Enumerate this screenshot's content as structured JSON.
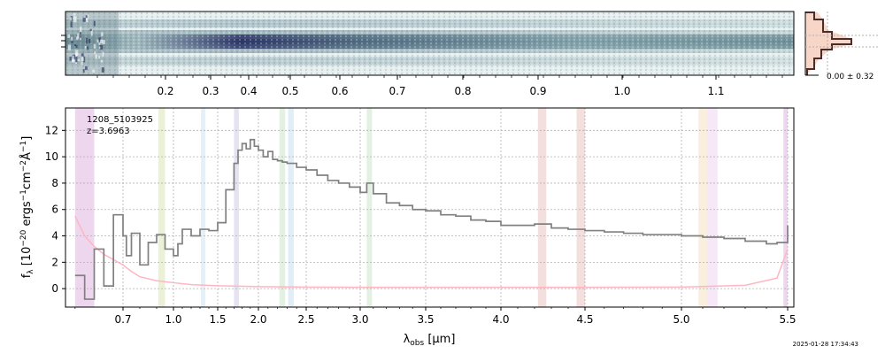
{
  "object_id": "1208_5103925",
  "redshift_label": "z=3.6963",
  "timestamp": "2025-01-28 17:34:43",
  "profile_label": "0.00 ± 0.32",
  "colors": {
    "spectrum": "#808080",
    "error": "#ffb6c1",
    "grid": "#b0b0b0",
    "profile_line": "#4a2c2a",
    "profile_fill": "#f4c4b0",
    "image_dark": "#1e2a55",
    "image_mid": "#7fa3ab",
    "image_light": "#e8f0f0"
  },
  "chart_data": [
    {
      "type": "heatmap",
      "name": "2d-spectrum",
      "top_axis_label": "",
      "top_ticks": [
        0.2,
        0.3,
        0.4,
        0.5,
        0.6,
        0.7,
        0.8,
        0.9,
        1.0,
        1.1
      ],
      "top_tick_labels": [
        "0.2",
        "0.3",
        "0.4",
        "0.5",
        "0.6",
        "0.7",
        "0.8",
        "0.9",
        "1.0",
        "1.1"
      ],
      "xlim": [
        0.58,
        5.52
      ]
    },
    {
      "type": "line",
      "name": "1d-spectrum",
      "xlabel": "λobs [μm]",
      "ylabel": "fλ [10⁻²⁰ ergs⁻¹cm⁻²Å⁻¹]",
      "xlim": [
        0.58,
        5.52
      ],
      "ylim": [
        -1.4,
        13.7
      ],
      "grid": true,
      "x_ticks": [
        0.7,
        1.0,
        1.5,
        2.0,
        2.5,
        3.0,
        3.5,
        4.0,
        4.5,
        5.0,
        5.5
      ],
      "x_tick_labels": [
        "0.7",
        "1.0",
        "1.5",
        "2.0",
        "2.5",
        "3.0",
        "3.5",
        "4.0",
        "4.5",
        "5.0",
        "5.5"
      ],
      "y_ticks": [
        0,
        2,
        4,
        6,
        8,
        10,
        12
      ],
      "y_tick_labels": [
        "0",
        "2",
        "4",
        "6",
        "8",
        "10",
        "12"
      ],
      "flux": {
        "x": [
          0.6,
          0.62,
          0.64,
          0.66,
          0.68,
          0.7,
          0.72,
          0.75,
          0.8,
          0.85,
          0.9,
          0.95,
          1.0,
          1.05,
          1.1,
          1.2,
          1.3,
          1.4,
          1.5,
          1.6,
          1.7,
          1.75,
          1.8,
          1.85,
          1.9,
          1.95,
          2.0,
          2.05,
          2.1,
          2.15,
          2.2,
          2.25,
          2.3,
          2.4,
          2.5,
          2.6,
          2.7,
          2.8,
          2.9,
          3.0,
          3.05,
          3.1,
          3.2,
          3.3,
          3.4,
          3.5,
          3.6,
          3.7,
          3.8,
          3.9,
          4.0,
          4.1,
          4.2,
          4.3,
          4.4,
          4.5,
          4.6,
          4.7,
          4.8,
          4.9,
          5.0,
          5.1,
          5.2,
          5.3,
          5.4,
          5.45,
          5.5
        ],
        "y": [
          1.0,
          -0.8,
          3.0,
          0.2,
          5.6,
          4.0,
          2.5,
          4.2,
          1.8,
          3.5,
          4.1,
          3.0,
          2.5,
          3.4,
          4.5,
          4.0,
          4.5,
          4.4,
          5.0,
          7.5,
          9.5,
          10.5,
          11.0,
          10.6,
          11.3,
          10.8,
          10.5,
          10.0,
          10.4,
          9.8,
          9.7,
          9.6,
          9.5,
          9.2,
          9.0,
          8.6,
          8.2,
          8.0,
          7.7,
          7.3,
          8.0,
          7.2,
          6.5,
          6.3,
          6.0,
          5.9,
          5.6,
          5.5,
          5.2,
          5.1,
          4.8,
          4.8,
          4.9,
          4.6,
          4.5,
          4.4,
          4.3,
          4.2,
          4.1,
          4.1,
          4.0,
          3.9,
          3.8,
          3.6,
          3.4,
          3.5,
          4.8
        ]
      },
      "error": {
        "x": [
          0.6,
          0.62,
          0.64,
          0.66,
          0.7,
          0.75,
          0.8,
          0.9,
          1.0,
          1.2,
          1.5,
          2.0,
          2.5,
          3.0,
          3.5,
          4.0,
          4.5,
          5.0,
          5.3,
          5.45,
          5.5
        ],
        "y": [
          5.5,
          4.0,
          3.2,
          2.6,
          1.8,
          1.3,
          0.9,
          0.6,
          0.45,
          0.3,
          0.22,
          0.15,
          0.12,
          0.1,
          0.1,
          0.1,
          0.1,
          0.12,
          0.25,
          0.8,
          3.0
        ]
      },
      "shaded_bands": [
        {
          "x0": 0.6,
          "x1": 0.64,
          "color": "#e8c8e8"
        },
        {
          "x0": 0.91,
          "x1": 0.95,
          "color": "#e4ecc8"
        },
        {
          "x0": 1.31,
          "x1": 1.36,
          "color": "#dcecf8"
        },
        {
          "x0": 1.7,
          "x1": 1.76,
          "color": "#ddd8ee"
        },
        {
          "x0": 2.22,
          "x1": 2.28,
          "color": "#d8ecd8"
        },
        {
          "x0": 2.31,
          "x1": 2.37,
          "color": "#d8e8f4"
        },
        {
          "x0": 3.05,
          "x1": 3.09,
          "color": "#d8ecd8"
        },
        {
          "x0": 4.22,
          "x1": 4.27,
          "color": "#f0d4d4"
        },
        {
          "x0": 4.45,
          "x1": 4.5,
          "color": "#f0d4d4"
        },
        {
          "x0": 5.08,
          "x1": 5.12,
          "color": "#f8e8d0"
        },
        {
          "x0": 5.12,
          "x1": 5.17,
          "color": "#f4e0f4"
        },
        {
          "x0": 5.48,
          "x1": 5.5,
          "color": "#e8c8e8"
        }
      ]
    }
  ]
}
